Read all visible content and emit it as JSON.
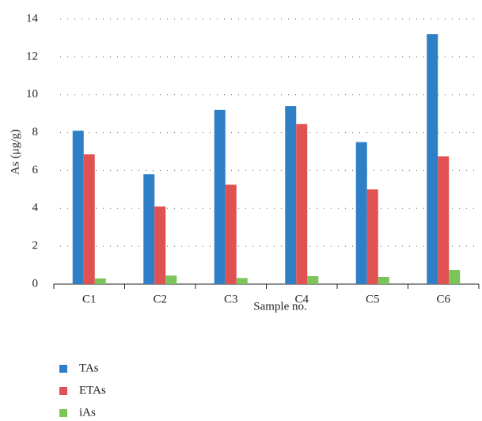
{
  "chart_data": {
    "type": "bar",
    "x_label": "Sample no.",
    "y_label": "As (μg/g)",
    "categories": [
      "C1",
      "C2",
      "C3",
      "C4",
      "C5",
      "C6"
    ],
    "series": [
      {
        "name": "TAs",
        "color": "#2f7fc6",
        "values": [
          8.1,
          5.8,
          9.2,
          9.4,
          7.5,
          13.2
        ]
      },
      {
        "name": "ETAs",
        "color": "#e05252",
        "values": [
          6.85,
          4.1,
          5.25,
          8.45,
          5.0,
          6.75
        ]
      },
      {
        "name": "iAs",
        "color": "#7cc35a",
        "values": [
          0.3,
          0.45,
          0.32,
          0.42,
          0.38,
          0.75
        ]
      }
    ],
    "ylim": [
      0,
      14
    ],
    "yticks": [
      0,
      2,
      4,
      6,
      8,
      10,
      12,
      14
    ],
    "grid": true,
    "legend": "bottom-left"
  }
}
